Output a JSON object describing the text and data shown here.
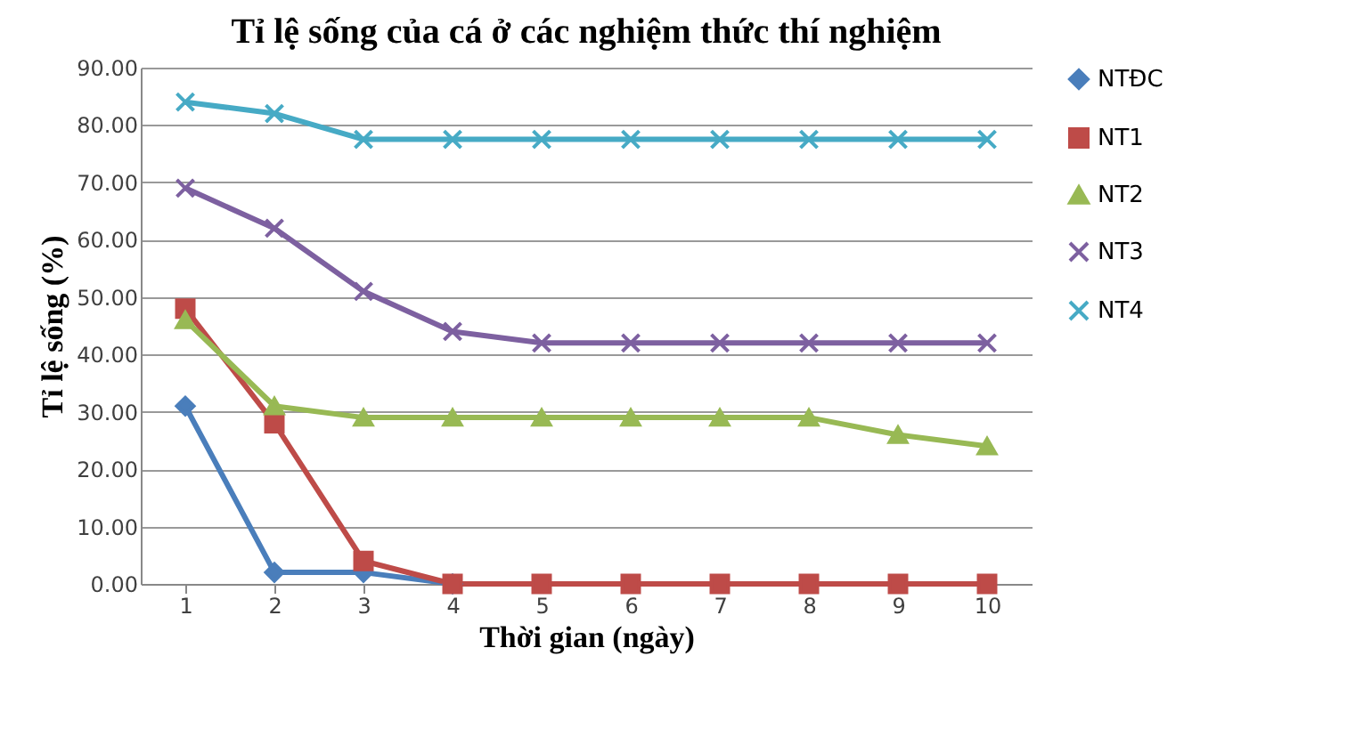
{
  "chart_data": {
    "type": "line",
    "title": "Tỉ lệ sống của cá ở các nghiệm thức thí nghiệm",
    "xlabel": "Thời gian (ngày)",
    "ylabel": "Tỉ lệ sống (%)",
    "categories": [
      "1",
      "2",
      "3",
      "4",
      "5",
      "6",
      "7",
      "8",
      "9",
      "10"
    ],
    "series": [
      {
        "name": "NTĐC",
        "color": "#4a7ebb",
        "marker": "diamond",
        "values": [
          31,
          2,
          2,
          0,
          null,
          null,
          null,
          null,
          null,
          null
        ]
      },
      {
        "name": "NT1",
        "color": "#be4b48",
        "marker": "square",
        "values": [
          48,
          28,
          4,
          0,
          0,
          0,
          0,
          0,
          0,
          0
        ]
      },
      {
        "name": "NT2",
        "color": "#98b954",
        "marker": "triangle",
        "values": [
          46,
          31,
          29,
          29,
          29,
          29,
          29,
          29,
          26,
          24
        ]
      },
      {
        "name": "NT3",
        "color": "#7d60a0",
        "marker": "cross",
        "values": [
          69,
          62,
          51,
          44,
          42,
          42,
          42,
          42,
          42,
          42
        ]
      },
      {
        "name": "NT4",
        "color": "#46aac5",
        "marker": "cross",
        "values": [
          84,
          82,
          77.5,
          77.5,
          77.5,
          77.5,
          77.5,
          77.5,
          77.5,
          77.5
        ]
      }
    ],
    "ylim": [
      0,
      90
    ],
    "yticks": [
      {
        "value": 0,
        "label": "0.00"
      },
      {
        "value": 10,
        "label": "10.00"
      },
      {
        "value": 20,
        "label": "20.00"
      },
      {
        "value": 30,
        "label": "30.00"
      },
      {
        "value": 40,
        "label": "40.00"
      },
      {
        "value": 50,
        "label": "50.00"
      },
      {
        "value": 60,
        "label": "60.00"
      },
      {
        "value": 70,
        "label": "70.00"
      },
      {
        "value": 80,
        "label": "80.00"
      },
      {
        "value": 90,
        "label": "90.00"
      }
    ],
    "grid": "y",
    "legend": "right",
    "line_style": "solid"
  }
}
